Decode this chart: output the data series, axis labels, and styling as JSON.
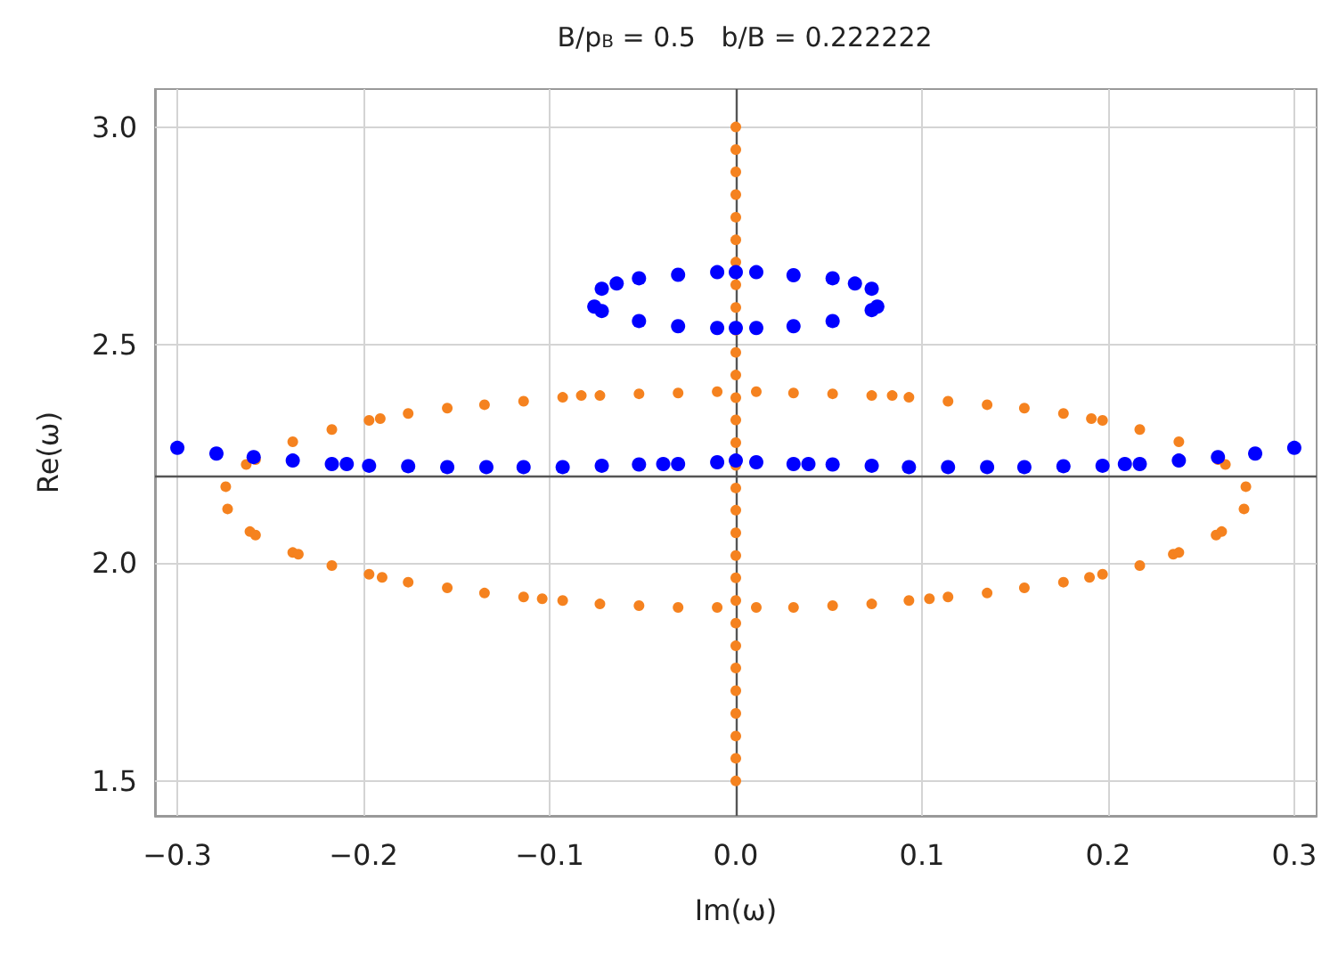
{
  "chart_data": {
    "type": "scatter",
    "title": "B/p$_{B}$ = 0.5   b/B = 0.222222",
    "xlabel": "Im(ω)",
    "ylabel": "Re(ω)",
    "xlim": [
      -0.312,
      0.312
    ],
    "ylim": [
      1.42,
      3.087
    ],
    "xticks": [
      {
        "value": -0.3,
        "label": "−0.3"
      },
      {
        "value": -0.2,
        "label": "−0.2"
      },
      {
        "value": -0.1,
        "label": "−0.1"
      },
      {
        "value": 0,
        "label": "0.0"
      },
      {
        "value": 0.1,
        "label": "0.1"
      },
      {
        "value": 0.2,
        "label": "0.2"
      },
      {
        "value": 0.3,
        "label": "0.3"
      }
    ],
    "yticks": [
      {
        "value": 1.5,
        "label": "1.5"
      },
      {
        "value": 2,
        "label": "2.0"
      },
      {
        "value": 2.5,
        "label": "2.5"
      },
      {
        "value": 3,
        "label": "3.0"
      }
    ],
    "grid": true,
    "marker": "circle",
    "ref_lines": [
      {
        "axis": "y",
        "value": 2.2,
        "label": null,
        "color": "#555555"
      },
      {
        "axis": "x",
        "value": 0,
        "label": null,
        "color": "#555555"
      }
    ],
    "series": [
      {
        "color": "#f5821f",
        "x": [
          0,
          0,
          0,
          0,
          0,
          0,
          0,
          0,
          0,
          0,
          0,
          0,
          0,
          0,
          0,
          0,
          0,
          0,
          0,
          0,
          0,
          0,
          0,
          0,
          0,
          0,
          0,
          0,
          0,
          0,
          -0.274,
          -0.263,
          -0.258,
          -0.238,
          -0.217,
          -0.197,
          -0.191,
          -0.176,
          -0.155,
          -0.135,
          -0.114,
          -0.093,
          -0.083,
          -0.073,
          -0.052,
          -0.031,
          -0.01,
          0.011,
          0.031,
          0.052,
          0.073,
          0.084,
          0.093,
          0.114,
          0.135,
          0.155,
          0.176,
          0.191,
          0.197,
          0.217,
          0.238,
          0.259,
          0.263,
          0.274,
          -0.273,
          -0.261,
          -0.258,
          -0.238,
          -0.235,
          -0.217,
          -0.197,
          -0.19,
          -0.176,
          -0.155,
          -0.135,
          -0.114,
          -0.104,
          -0.093,
          -0.073,
          -0.052,
          -0.031,
          -0.01,
          0.011,
          0.031,
          0.052,
          0.073,
          0.093,
          0.104,
          0.114,
          0.135,
          0.155,
          0.176,
          0.19,
          0.197,
          0.217,
          0.235,
          0.238,
          0.258,
          0.261,
          0.273
        ],
        "values": [
          3.0,
          2.948,
          2.897,
          2.845,
          2.793,
          2.741,
          2.69,
          2.638,
          2.586,
          2.534,
          2.483,
          2.431,
          2.379,
          2.328,
          2.276,
          2.224,
          2.172,
          2.121,
          2.069,
          2.017,
          1.966,
          1.914,
          1.862,
          1.81,
          1.759,
          1.707,
          1.655,
          1.603,
          1.552,
          1.5,
          2.175,
          2.226,
          2.237,
          2.278,
          2.306,
          2.327,
          2.331,
          2.343,
          2.355,
          2.363,
          2.371,
          2.38,
          2.384,
          2.384,
          2.388,
          2.39,
          2.393,
          2.393,
          2.39,
          2.388,
          2.384,
          2.384,
          2.38,
          2.371,
          2.363,
          2.355,
          2.343,
          2.331,
          2.327,
          2.306,
          2.278,
          2.237,
          2.226,
          2.175,
          2.124,
          2.072,
          2.064,
          2.024,
          2.02,
          1.994,
          1.974,
          1.967,
          1.956,
          1.943,
          1.931,
          1.922,
          1.918,
          1.914,
          1.906,
          1.902,
          1.898,
          1.898,
          1.898,
          1.898,
          1.902,
          1.906,
          1.914,
          1.918,
          1.922,
          1.931,
          1.943,
          1.956,
          1.967,
          1.974,
          1.994,
          2.02,
          2.024,
          2.064,
          2.072,
          2.124
        ]
      },
      {
        "color": "#0000ff",
        "x": [
          -0.076,
          -0.072,
          -0.072,
          -0.064,
          -0.052,
          -0.031,
          -0.01,
          0,
          0.011,
          0.031,
          0.052,
          0.064,
          0.073,
          0.073,
          0.076,
          -0.052,
          -0.031,
          -0.01,
          0,
          0.011,
          0.031,
          0.052,
          -0.3,
          -0.279,
          -0.259,
          -0.238,
          -0.217,
          -0.209,
          -0.197,
          -0.176,
          -0.155,
          -0.134,
          -0.114,
          -0.093,
          -0.072,
          -0.052,
          -0.039,
          -0.031,
          -0.01,
          0,
          0.011,
          0.031,
          0.039,
          0.052,
          0.073,
          0.093,
          0.114,
          0.135,
          0.155,
          0.176,
          0.197,
          0.209,
          0.217,
          0.238,
          0.259,
          0.279,
          0.3
        ],
        "values": [
          2.588,
          2.578,
          2.629,
          2.641,
          2.653,
          2.661,
          2.667,
          2.667,
          2.667,
          2.66,
          2.653,
          2.641,
          2.629,
          2.58,
          2.588,
          2.555,
          2.543,
          2.539,
          2.539,
          2.539,
          2.543,
          2.555,
          2.264,
          2.251,
          2.243,
          2.235,
          2.227,
          2.227,
          2.223,
          2.222,
          2.22,
          2.22,
          2.22,
          2.22,
          2.223,
          2.226,
          2.227,
          2.227,
          2.231,
          2.235,
          2.231,
          2.227,
          2.227,
          2.226,
          2.223,
          2.22,
          2.22,
          2.22,
          2.22,
          2.222,
          2.223,
          2.227,
          2.227,
          2.235,
          2.243,
          2.251,
          2.264
        ]
      }
    ]
  }
}
